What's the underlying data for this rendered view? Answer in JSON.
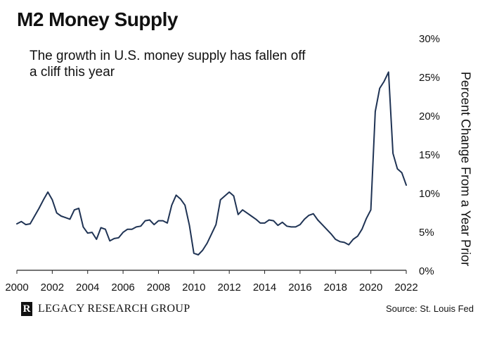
{
  "header": {
    "title": "M2 Money Supply"
  },
  "annotation": "The growth in U.S. money supply has fallen off a cliff this year",
  "footer": {
    "brand": "LEGACY RESEARCH GROUP",
    "logo_letter": "R",
    "source": "Source: St. Louis Fed"
  },
  "colors": {
    "line": "#1f3354",
    "axis": "#222222",
    "text": "#111111"
  },
  "chart_data": {
    "type": "line",
    "title": "M2 Money Supply",
    "ylabel": "Percent Change From a Year Prior",
    "xlabel": "",
    "xlim": [
      2000,
      2022
    ],
    "ylim": [
      0,
      30
    ],
    "grid": false,
    "legend": "none",
    "x_ticks": [
      2000,
      2002,
      2004,
      2006,
      2008,
      2010,
      2012,
      2014,
      2016,
      2018,
      2020,
      2022
    ],
    "x_tick_labels": [
      "2000",
      "2002",
      "2004",
      "2006",
      "2008",
      "2010",
      "2012",
      "2014",
      "2016",
      "2018",
      "2020",
      "2022"
    ],
    "y_ticks": [
      0,
      5,
      10,
      15,
      20,
      25,
      30
    ],
    "y_tick_labels": [
      "0%",
      "5%",
      "10%",
      "15%",
      "20%",
      "25%",
      "30%"
    ],
    "series": [
      {
        "name": "",
        "x": [
          2000.0,
          2000.25,
          2000.5,
          2000.75,
          2001.0,
          2001.25,
          2001.5,
          2001.75,
          2002.0,
          2002.25,
          2002.5,
          2002.75,
          2003.0,
          2003.25,
          2003.5,
          2003.75,
          2004.0,
          2004.25,
          2004.5,
          2004.75,
          2005.0,
          2005.25,
          2005.5,
          2005.75,
          2006.0,
          2006.25,
          2006.5,
          2006.75,
          2007.0,
          2007.25,
          2007.5,
          2007.75,
          2008.0,
          2008.25,
          2008.5,
          2008.75,
          2009.0,
          2009.25,
          2009.5,
          2009.75,
          2010.0,
          2010.25,
          2010.5,
          2010.75,
          2011.0,
          2011.25,
          2011.5,
          2011.75,
          2012.0,
          2012.25,
          2012.5,
          2012.75,
          2013.0,
          2013.25,
          2013.5,
          2013.75,
          2014.0,
          2014.25,
          2014.5,
          2014.75,
          2015.0,
          2015.25,
          2015.5,
          2015.75,
          2016.0,
          2016.25,
          2016.5,
          2016.75,
          2017.0,
          2017.25,
          2017.5,
          2017.75,
          2018.0,
          2018.25,
          2018.5,
          2018.75,
          2019.0,
          2019.25,
          2019.5,
          2019.75,
          2020.0,
          2020.25,
          2020.5,
          2020.75,
          2021.0,
          2021.25,
          2021.5,
          2021.75,
          2022.0
        ],
        "values": [
          6.0,
          6.3,
          5.9,
          6.0,
          7.0,
          8.0,
          9.1,
          10.1,
          9.1,
          7.4,
          7.0,
          6.8,
          6.6,
          7.8,
          8.0,
          5.6,
          4.8,
          4.9,
          4.0,
          5.5,
          5.3,
          3.8,
          4.1,
          4.2,
          4.9,
          5.3,
          5.3,
          5.6,
          5.7,
          6.4,
          6.5,
          5.9,
          6.4,
          6.4,
          6.1,
          8.4,
          9.7,
          9.2,
          8.4,
          5.8,
          2.2,
          2.0,
          2.6,
          3.5,
          4.7,
          5.9,
          9.1,
          9.6,
          10.1,
          9.6,
          7.2,
          7.8,
          7.4,
          7.0,
          6.6,
          6.1,
          6.1,
          6.5,
          6.4,
          5.8,
          6.2,
          5.7,
          5.6,
          5.6,
          5.9,
          6.6,
          7.1,
          7.3,
          6.5,
          5.9,
          5.3,
          4.7,
          4.0,
          3.7,
          3.6,
          3.3,
          4.0,
          4.4,
          5.3,
          6.7,
          7.8,
          20.5,
          23.5,
          24.4,
          25.6,
          15.1,
          13.1,
          12.6,
          11.0
        ]
      }
    ]
  }
}
